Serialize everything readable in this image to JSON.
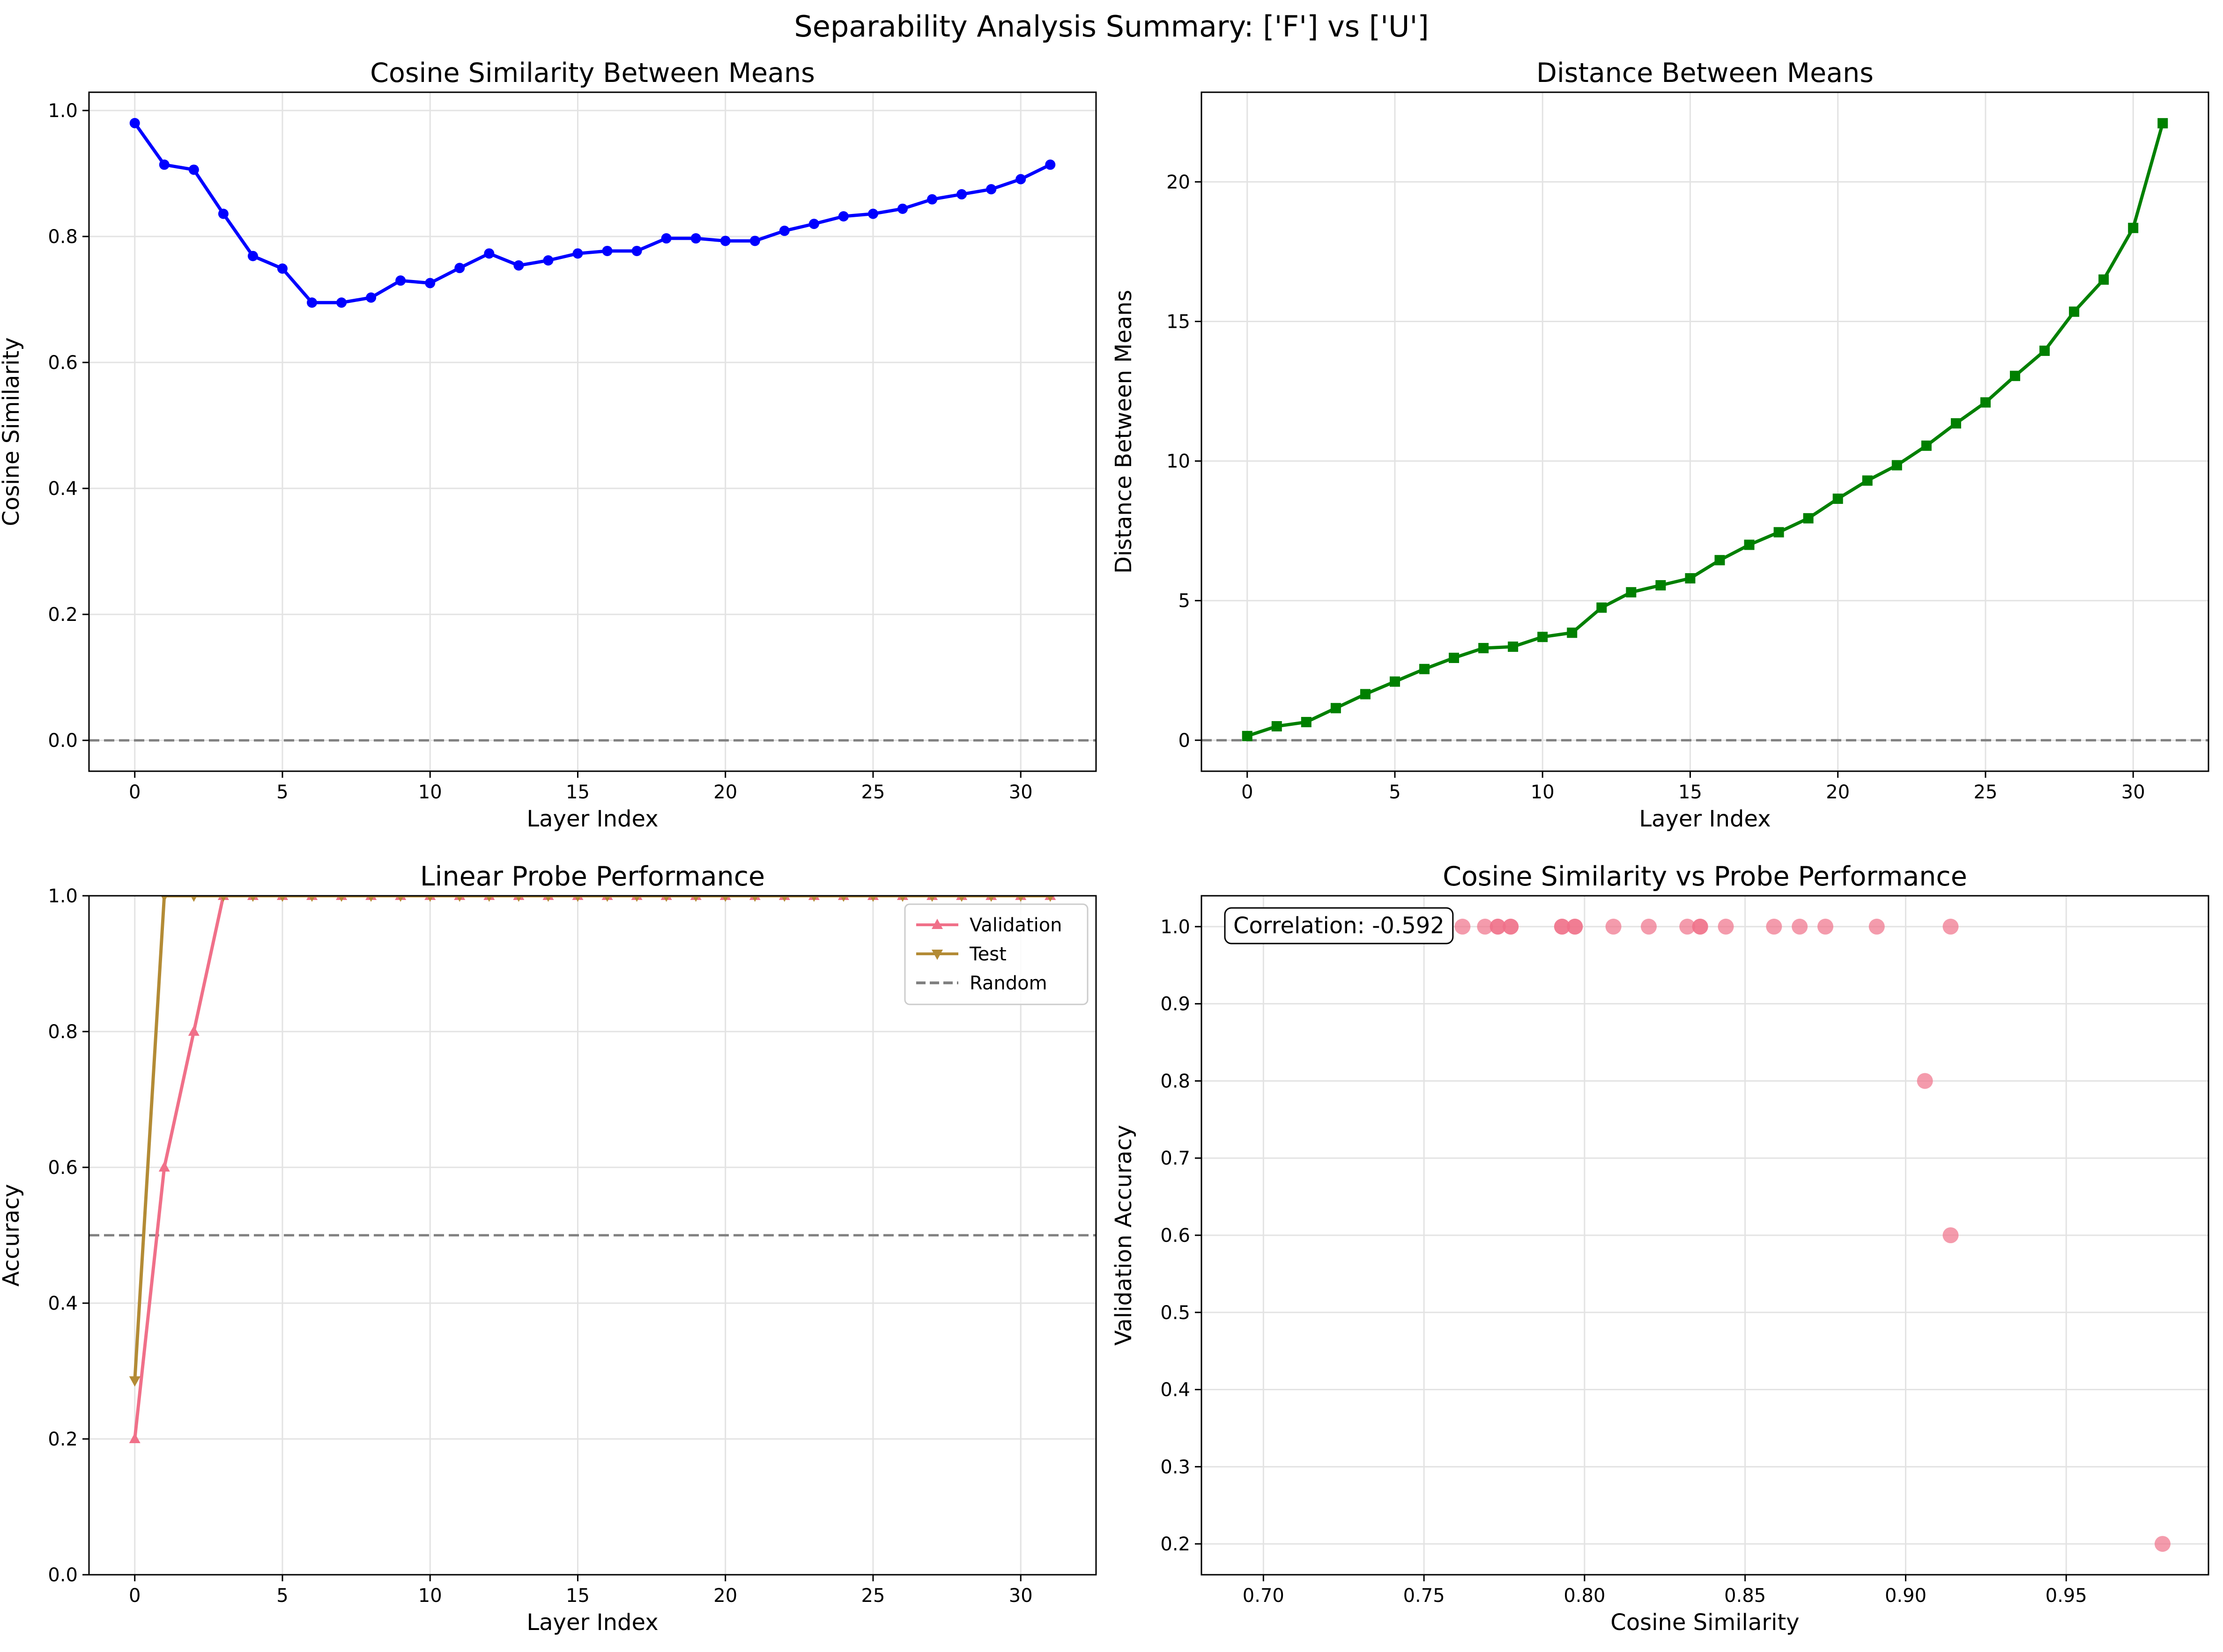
{
  "figure": {
    "title": "Separability Analysis Summary: ['F'] vs ['U']"
  },
  "chart_data": [
    {
      "type": "line",
      "title": "Cosine Similarity Between Means",
      "xlabel": "Layer Index",
      "ylabel": "Cosine Similarity",
      "xlim": [
        -1.55,
        32.55
      ],
      "ylim": [
        -0.049,
        1.029
      ],
      "xticks": [
        0,
        5,
        10,
        15,
        20,
        25,
        30
      ],
      "yticks": [
        0.0,
        0.2,
        0.4,
        0.6,
        0.8,
        1.0
      ],
      "ytick_decimals": 1,
      "grid": true,
      "x": [
        0,
        1,
        2,
        3,
        4,
        5,
        6,
        7,
        8,
        9,
        10,
        11,
        12,
        13,
        14,
        15,
        16,
        17,
        18,
        19,
        20,
        21,
        22,
        23,
        24,
        25,
        26,
        27,
        28,
        29,
        30,
        31
      ],
      "series": [
        {
          "color": "#0000ff",
          "marker": "circle",
          "values": [
            0.98,
            0.914,
            0.906,
            0.836,
            0.769,
            0.749,
            0.695,
            0.695,
            0.703,
            0.73,
            0.726,
            0.75,
            0.773,
            0.754,
            0.762,
            0.773,
            0.777,
            0.777,
            0.797,
            0.797,
            0.793,
            0.793,
            0.809,
            0.82,
            0.832,
            0.836,
            0.844,
            0.859,
            0.867,
            0.875,
            0.891,
            0.914
          ]
        }
      ],
      "hlines": [
        {
          "y": 0,
          "color": "#808080",
          "dashed": true
        }
      ]
    },
    {
      "type": "line",
      "title": "Distance Between Means",
      "xlabel": "Layer Index",
      "ylabel": "Distance Between Means",
      "xlim": [
        -1.55,
        32.55
      ],
      "ylim": [
        -1.11,
        23.21
      ],
      "xticks": [
        0,
        5,
        10,
        15,
        20,
        25,
        30
      ],
      "yticks": [
        0,
        5,
        10,
        15,
        20
      ],
      "ytick_decimals": 0,
      "grid": true,
      "x": [
        0,
        1,
        2,
        3,
        4,
        5,
        6,
        7,
        8,
        9,
        10,
        11,
        12,
        13,
        14,
        15,
        16,
        17,
        18,
        19,
        20,
        21,
        22,
        23,
        24,
        25,
        26,
        27,
        28,
        29,
        30,
        31
      ],
      "series": [
        {
          "color": "#008000",
          "marker": "square",
          "values": [
            0.15,
            0.5,
            0.65,
            1.15,
            1.65,
            2.1,
            2.55,
            2.95,
            3.3,
            3.35,
            3.7,
            3.85,
            4.75,
            5.3,
            5.55,
            5.8,
            6.45,
            7.0,
            7.45,
            7.95,
            8.65,
            9.3,
            9.85,
            10.55,
            11.35,
            12.1,
            13.05,
            13.95,
            15.35,
            16.5,
            18.35,
            22.1
          ]
        }
      ],
      "hlines": [
        {
          "y": 0,
          "color": "#808080",
          "dashed": true
        }
      ]
    },
    {
      "type": "line",
      "title": "Linear Probe Performance",
      "xlabel": "Layer Index",
      "ylabel": "Accuracy",
      "xlim": [
        -1.55,
        32.55
      ],
      "ylim": [
        0.0,
        1.0
      ],
      "xticks": [
        0,
        5,
        10,
        15,
        20,
        25,
        30
      ],
      "yticks": [
        0.0,
        0.2,
        0.4,
        0.6,
        0.8,
        1.0
      ],
      "ytick_decimals": 1,
      "grid": true,
      "legend": "top-right",
      "x": [
        0,
        1,
        2,
        3,
        4,
        5,
        6,
        7,
        8,
        9,
        10,
        11,
        12,
        13,
        14,
        15,
        16,
        17,
        18,
        19,
        20,
        21,
        22,
        23,
        24,
        25,
        26,
        27,
        28,
        29,
        30,
        31
      ],
      "series": [
        {
          "name": "Validation",
          "color": "#f07089",
          "marker": "triangle-up",
          "values": [
            0.2,
            0.6,
            0.8,
            1,
            1,
            1,
            1,
            1,
            1,
            1,
            1,
            1,
            1,
            1,
            1,
            1,
            1,
            1,
            1,
            1,
            1,
            1,
            1,
            1,
            1,
            1,
            1,
            1,
            1,
            1,
            1,
            1
          ]
        },
        {
          "name": "Test",
          "color": "#b38b35",
          "marker": "triangle-down",
          "values": [
            0.286,
            1,
            1,
            1,
            1,
            1,
            1,
            1,
            1,
            1,
            1,
            1,
            1,
            1,
            1,
            1,
            1,
            1,
            1,
            1,
            1,
            1,
            1,
            1,
            1,
            1,
            1,
            1,
            1,
            1,
            1,
            1
          ]
        }
      ],
      "hlines": [
        {
          "y": 0.5,
          "color": "#808080",
          "dashed": true,
          "name": "Random"
        }
      ]
    },
    {
      "type": "scatter",
      "title": "Cosine Similarity vs Probe Performance",
      "xlabel": "Cosine Similarity",
      "ylabel": "Validation Accuracy",
      "xlim": [
        0.6807,
        0.9943
      ],
      "ylim": [
        0.16,
        1.04
      ],
      "xticks": [
        0.7,
        0.75,
        0.8,
        0.85,
        0.9,
        0.95
      ],
      "xtick_decimals": 2,
      "yticks": [
        0.2,
        0.3,
        0.4,
        0.5,
        0.6,
        0.7,
        0.8,
        0.9,
        1.0
      ],
      "ytick_decimals": 1,
      "grid": true,
      "annotation": "Correlation: -0.592",
      "series": [
        {
          "color": "#f07089",
          "x": [
            0.98,
            0.914,
            0.906,
            0.836,
            0.769,
            0.749,
            0.695,
            0.695,
            0.703,
            0.73,
            0.726,
            0.75,
            0.773,
            0.754,
            0.762,
            0.773,
            0.777,
            0.777,
            0.797,
            0.797,
            0.793,
            0.793,
            0.809,
            0.82,
            0.832,
            0.836,
            0.844,
            0.859,
            0.867,
            0.875,
            0.891,
            0.914
          ],
          "y": [
            0.2,
            0.6,
            0.8,
            1,
            1,
            1,
            1,
            1,
            1,
            1,
            1,
            1,
            1,
            1,
            1,
            1,
            1,
            1,
            1,
            1,
            1,
            1,
            1,
            1,
            1,
            1,
            1,
            1,
            1,
            1,
            1,
            1
          ]
        }
      ]
    }
  ]
}
